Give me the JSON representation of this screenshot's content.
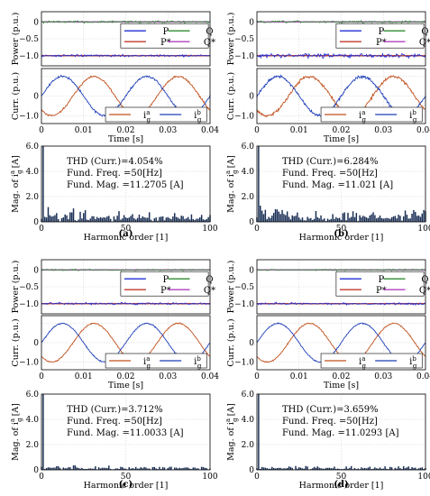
{
  "chart_data": [
    {
      "type": "multi-panel",
      "panel_label": "(a)",
      "power": {
        "ylabel": "Power (p.u.)",
        "ylim": [
          -1.3,
          0.3
        ],
        "yticks": [
          "0",
          "−0.5",
          "−1.0"
        ],
        "ytick_values": [
          0,
          -0.5,
          -1.0
        ],
        "legend": [
          "P",
          "Q",
          "P*",
          "Q*"
        ],
        "P": -1.0,
        "Q": 0.0,
        "Pstar": -1.0,
        "Qstar": 0.0,
        "P_noise": 0.03,
        "Q_noise": 0.03
      },
      "current": {
        "ylabel": "Curr. (p.u.)",
        "ylim": [
          -1.4,
          1.4
        ],
        "yticks": [
          "0",
          "−1.0"
        ],
        "ytick_values": [
          0,
          -1.0
        ],
        "legend": [
          "i",
          "i"
        ],
        "legend_sub": [
          "g",
          "g"
        ],
        "legend_sup": [
          "a",
          "b"
        ],
        "amplitude": 1.0,
        "frequency_hz": 50,
        "noise": 0.05,
        "xlabel": "Time [s]",
        "xlim": [
          0,
          0.04
        ],
        "xticks": [
          "0",
          "0.01",
          "0.02",
          "0.03",
          "0.04"
        ],
        "xtick_values": [
          0,
          0.01,
          0.02,
          0.03,
          0.04
        ]
      },
      "harmonics": {
        "ylabel": "Mag. of i",
        "ylabel_sub": "g",
        "ylabel_sup": "a",
        "ylabel_unit": "[A]",
        "ylim": [
          0,
          6.0
        ],
        "yticks": [
          "0",
          "2.0",
          "4.0",
          "6.0"
        ],
        "ytick_values": [
          0,
          2,
          4,
          6
        ],
        "xlabel": "Harmonic order [1]",
        "xlim": [
          0,
          100
        ],
        "xticks": [
          "0",
          "50",
          "100"
        ],
        "xtick_values": [
          0,
          50,
          100
        ],
        "fundamental_bar": 6.0,
        "noise_level": 0.8,
        "annotations": [
          "THD (Curr.)=4.054%",
          "Fund. Freq. =50[Hz]",
          "Fund. Mag. =11.2705 [A]"
        ]
      }
    },
    {
      "type": "multi-panel",
      "panel_label": "(b)",
      "power": {
        "ylabel": "Power (p.u.)",
        "ylim": [
          -1.3,
          0.3
        ],
        "yticks": [
          "0",
          "−0.5",
          "−1.0"
        ],
        "ytick_values": [
          0,
          -0.5,
          -1.0
        ],
        "legend": [
          "P",
          "Q",
          "P*",
          "Q*"
        ],
        "P": -1.0,
        "Q": 0.0,
        "Pstar": -1.0,
        "Qstar": 0.0,
        "P_noise": 0.06,
        "Q_noise": 0.03
      },
      "current": {
        "ylabel": "Curr. (p.u.)",
        "ylim": [
          -1.4,
          1.4
        ],
        "yticks": [
          "0",
          "−1.0"
        ],
        "ytick_values": [
          0,
          -1.0
        ],
        "legend": [
          "i",
          "i"
        ],
        "legend_sub": [
          "g",
          "g"
        ],
        "legend_sup": [
          "a",
          "b"
        ],
        "amplitude": 1.0,
        "frequency_hz": 50,
        "noise": 0.07,
        "xlabel": "Time [s]",
        "xlim": [
          0,
          0.04
        ],
        "xticks": [
          "0",
          "0.01",
          "0.02",
          "0.03",
          "0.04"
        ],
        "xtick_values": [
          0,
          0.01,
          0.02,
          0.03,
          0.04
        ]
      },
      "harmonics": {
        "ylabel": "Mag. of i",
        "ylabel_sub": "g",
        "ylabel_sup": "a",
        "ylabel_unit": "[A]",
        "ylim": [
          0,
          6.0
        ],
        "yticks": [
          "0",
          "2.0",
          "4.0",
          "6.0"
        ],
        "ytick_values": [
          0,
          2,
          4,
          6
        ],
        "xlabel": "Harmonic order [1]",
        "xlim": [
          0,
          100
        ],
        "xticks": [
          "0",
          "50",
          "100"
        ],
        "xtick_values": [
          0,
          50,
          100
        ],
        "fundamental_bar": 6.0,
        "noise_level": 0.9,
        "annotations": [
          "THD (Curr.)=6.284%",
          "Fund. Freq. =50[Hz]",
          "Fund. Mag. =11.021 [A]"
        ]
      }
    },
    {
      "type": "multi-panel",
      "panel_label": "(c)",
      "power": {
        "ylabel": "Power (p.u.)",
        "ylim": [
          -1.3,
          0.3
        ],
        "yticks": [
          "0",
          "−0.5",
          "−1.0"
        ],
        "ytick_values": [
          0,
          -0.5,
          -1.0
        ],
        "legend": [
          "P",
          "Q",
          "P*",
          "Q*"
        ],
        "P": -1.0,
        "Q": 0.0,
        "Pstar": -1.0,
        "Qstar": 0.0,
        "P_noise": 0.03,
        "Q_noise": 0.02
      },
      "current": {
        "ylabel": "Curr. (p.u.)",
        "ylim": [
          -1.4,
          1.4
        ],
        "yticks": [
          "0",
          "−1.0"
        ],
        "ytick_values": [
          0,
          -1.0
        ],
        "legend": [
          "i",
          "i"
        ],
        "legend_sub": [
          "g",
          "g"
        ],
        "legend_sup": [
          "a",
          "b"
        ],
        "amplitude": 1.0,
        "frequency_hz": 50,
        "noise": 0.03,
        "xlabel": "Time [s]",
        "xlim": [
          0,
          0.04
        ],
        "xticks": [
          "0",
          "0.01",
          "0.02",
          "0.03",
          "0.04"
        ],
        "xtick_values": [
          0,
          0.01,
          0.02,
          0.03,
          0.04
        ]
      },
      "harmonics": {
        "ylabel": "Mag. of i",
        "ylabel_sub": "g",
        "ylabel_sup": "a",
        "ylabel_unit": "[A]",
        "ylim": [
          0,
          6.0
        ],
        "yticks": [
          "0",
          "2.0",
          "4.0",
          "6.0"
        ],
        "ytick_values": [
          0,
          2,
          4,
          6
        ],
        "xlabel": "Harmonic order [1]",
        "xlim": [
          0,
          100
        ],
        "xticks": [
          "0",
          "50",
          "100"
        ],
        "xtick_values": [
          0,
          50,
          100
        ],
        "fundamental_bar": 6.0,
        "noise_level": 0.35,
        "annotations": [
          "THD (Curr.)=3.712%",
          "Fund. Freq. =50[Hz]",
          "Fund. Mag. =11.0033 [A]"
        ]
      }
    },
    {
      "type": "multi-panel",
      "panel_label": "(d)",
      "power": {
        "ylabel": "Power (p.u.)",
        "ylim": [
          -1.3,
          0.3
        ],
        "yticks": [
          "0",
          "−0.5",
          "−1.0"
        ],
        "ytick_values": [
          0,
          -0.5,
          -1.0
        ],
        "legend": [
          "P",
          "Q",
          "P*",
          "Q*"
        ],
        "P": -1.0,
        "Q": 0.0,
        "Pstar": -1.0,
        "Qstar": 0.0,
        "P_noise": 0.03,
        "Q_noise": 0.02
      },
      "current": {
        "ylabel": "Curr. (p.u.)",
        "ylim": [
          -1.4,
          1.4
        ],
        "yticks": [
          "0",
          "−1.0"
        ],
        "ytick_values": [
          0,
          -1.0
        ],
        "legend": [
          "i",
          "i"
        ],
        "legend_sub": [
          "g",
          "g"
        ],
        "legend_sup": [
          "a",
          "b"
        ],
        "amplitude": 1.0,
        "frequency_hz": 50,
        "noise": 0.03,
        "xlabel": "Time [s]",
        "xlim": [
          0,
          0.04
        ],
        "xticks": [
          "0",
          "0.01",
          "0.02",
          "0.03",
          "0.04"
        ],
        "xtick_values": [
          0,
          0.01,
          0.02,
          0.03,
          0.04
        ]
      },
      "harmonics": {
        "ylabel": "Mag. of i",
        "ylabel_sub": "g",
        "ylabel_sup": "a",
        "ylabel_unit": "[A]",
        "ylim": [
          0,
          6.0
        ],
        "yticks": [
          "0",
          "2.0",
          "4.0",
          "6.0"
        ],
        "ytick_values": [
          0,
          2,
          4,
          6
        ],
        "xlabel": "Harmonic order [1]",
        "xlim": [
          0,
          100
        ],
        "xticks": [
          "0",
          "50",
          "100"
        ],
        "xtick_values": [
          0,
          50,
          100
        ],
        "fundamental_bar": 6.0,
        "noise_level": 0.35,
        "annotations": [
          "THD (Curr.)=3.659%",
          "Fund. Freq. =50[Hz]",
          "Fund. Mag. =11.0293 [A]"
        ]
      }
    }
  ],
  "colors": {
    "P": "#1f2fd6",
    "Q": "#2e8b2e",
    "Pstar": "#c0392b",
    "Qstar": "#b040c0",
    "ia": "#c0501c",
    "ib": "#1f3fb8",
    "harm": "#1a2f55",
    "grid": "#cfcfcf"
  }
}
